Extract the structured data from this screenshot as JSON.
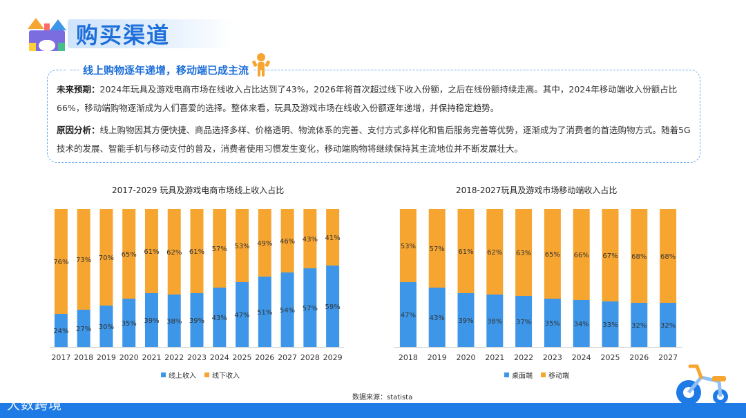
{
  "page": {
    "title": "购买渠道"
  },
  "summary": {
    "title": "线上购物逐年递增，移动端已成主流",
    "p1_label": "未来预期：",
    "p1_text": "2024年玩具及游戏电商市场在线收入占比达到了43%，2026年将首次超过线下收入份额，之后在线份额持续走高。其中，2024年移动端收入份额占比66%，移动端购物逐渐成为人们喜爱的选择。整体来看，玩具及游戏市场在线收入份额逐年递增，并保持稳定趋势。",
    "p2_label": "原因分析：",
    "p2_text": "线上购物因其方便快捷、商品选择多样、价格透明、物流体系的完善、支付方式多样化和售后服务完善等优势，逐渐成为了消费者的首选购物方式。随着5G技术的发展、智能手机与移动支付的普及，消费者使用习惯发生变化，移动端购物将继续保持其主流地位并不断发展壮大。"
  },
  "chart_data": [
    {
      "type": "bar",
      "stacked": true,
      "title": "2017-2029 玩具及游戏电商市场线上收入占比",
      "categories": [
        "2017",
        "2018",
        "2019",
        "2020",
        "2021",
        "2022",
        "2023",
        "2024",
        "2025",
        "2026",
        "2027",
        "2028",
        "2029"
      ],
      "series": [
        {
          "name": "线上收入",
          "color": "#3d96e8",
          "values": [
            24,
            27,
            30,
            35,
            39,
            38,
            39,
            43,
            47,
            51,
            54,
            57,
            59
          ]
        },
        {
          "name": "线下收入",
          "color": "#f7a531",
          "values": [
            76,
            73,
            70,
            65,
            61,
            62,
            61,
            57,
            53,
            49,
            46,
            43,
            41
          ]
        }
      ],
      "ylim": [
        0,
        100
      ],
      "unit": "%"
    },
    {
      "type": "bar",
      "stacked": true,
      "title": "2018-2027玩具及游戏市场移动端收入占比",
      "categories": [
        "2018",
        "2019",
        "2020",
        "2021",
        "2022",
        "2023",
        "2024",
        "2025",
        "2026",
        "2027"
      ],
      "series": [
        {
          "name": "桌面端",
          "color": "#3d96e8",
          "values": [
            47,
            43,
            39,
            38,
            37,
            35,
            34,
            33,
            32,
            32
          ]
        },
        {
          "name": "移动端",
          "color": "#f7a531",
          "values": [
            53,
            57,
            61,
            62,
            63,
            65,
            66,
            67,
            68,
            68
          ]
        }
      ],
      "ylim": [
        0,
        100
      ],
      "unit": "%"
    }
  ],
  "footer": {
    "source": "数据来源：statista",
    "brand": "大数跨境"
  }
}
